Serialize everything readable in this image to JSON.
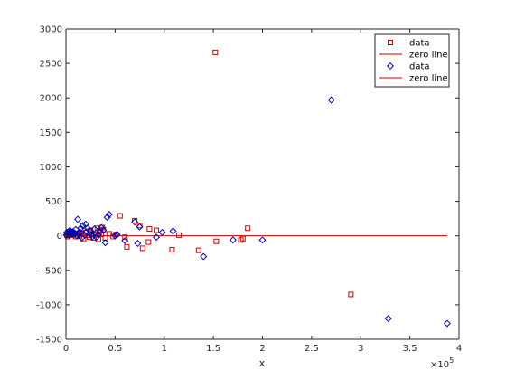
{
  "chart_data": {
    "type": "scatter",
    "xlabel": "x",
    "ylabel": "",
    "title": "",
    "xlim": [
      0,
      400000
    ],
    "ylim": [
      -1500,
      3000
    ],
    "x_exponent_label": "×10",
    "x_exponent_power": "5",
    "x_ticks": [
      0,
      50000,
      100000,
      150000,
      200000,
      250000,
      300000,
      350000,
      400000
    ],
    "x_tick_labels": [
      "0",
      "0.5",
      "1",
      "1.5",
      "2",
      "2.5",
      "3",
      "3.5",
      "4"
    ],
    "y_ticks": [
      -1500,
      -1000,
      -500,
      0,
      500,
      1000,
      1500,
      2000,
      2500,
      3000
    ],
    "y_tick_labels": [
      "-1500",
      "-1000",
      "-500",
      "0",
      "500",
      "1000",
      "1500",
      "2000",
      "2500",
      "3000"
    ],
    "grid": false,
    "legend_position": "top-right",
    "legend": [
      {
        "label": "data",
        "type": "marker",
        "marker": "square",
        "color": "#cc0000"
      },
      {
        "label": "zero line",
        "type": "line",
        "color": "#cc0000"
      },
      {
        "label": "data",
        "type": "marker",
        "marker": "diamond",
        "color": "#0000aa"
      },
      {
        "label": "zero line",
        "type": "line",
        "color": "#cc0000"
      }
    ],
    "series": [
      {
        "name": "data",
        "marker": "square",
        "color": "#cc0000",
        "points": [
          [
            152000,
            2660
          ],
          [
            290000,
            -850
          ],
          [
            185000,
            110
          ],
          [
            180000,
            -40
          ],
          [
            178000,
            -60
          ],
          [
            153000,
            -80
          ],
          [
            135000,
            -210
          ],
          [
            115000,
            10
          ],
          [
            108000,
            -200
          ],
          [
            92000,
            80
          ],
          [
            85000,
            100
          ],
          [
            84000,
            -90
          ],
          [
            78000,
            -180
          ],
          [
            75000,
            150
          ],
          [
            70000,
            220
          ],
          [
            62000,
            -160
          ],
          [
            60000,
            -20
          ],
          [
            55000,
            290
          ],
          [
            51000,
            20
          ],
          [
            48000,
            -10
          ],
          [
            44000,
            30
          ],
          [
            40000,
            -30
          ],
          [
            38000,
            90
          ],
          [
            37000,
            120
          ],
          [
            36000,
            20
          ],
          [
            34000,
            60
          ],
          [
            33000,
            -50
          ],
          [
            32000,
            110
          ],
          [
            30000,
            20
          ],
          [
            28000,
            -30
          ],
          [
            26000,
            40
          ],
          [
            25000,
            80
          ],
          [
            24000,
            -20
          ],
          [
            22000,
            10
          ],
          [
            20000,
            50
          ],
          [
            18000,
            -40
          ],
          [
            16000,
            30
          ],
          [
            14000,
            0
          ],
          [
            12000,
            20
          ],
          [
            10000,
            -10
          ],
          [
            8000,
            40
          ],
          [
            6000,
            10
          ],
          [
            4000,
            20
          ],
          [
            2000,
            -10
          ],
          [
            1000,
            10
          ]
        ]
      },
      {
        "name": "data",
        "marker": "diamond",
        "color": "#0000aa",
        "points": [
          [
            270000,
            1970
          ],
          [
            328000,
            -1200
          ],
          [
            388000,
            -1270
          ],
          [
            200000,
            -60
          ],
          [
            170000,
            -60
          ],
          [
            140000,
            -300
          ],
          [
            109000,
            70
          ],
          [
            98000,
            50
          ],
          [
            92000,
            -20
          ],
          [
            75000,
            130
          ],
          [
            73000,
            -110
          ],
          [
            70000,
            200
          ],
          [
            60000,
            -70
          ],
          [
            52000,
            20
          ],
          [
            50000,
            0
          ],
          [
            44000,
            310
          ],
          [
            42000,
            270
          ],
          [
            40000,
            -100
          ],
          [
            38000,
            80
          ],
          [
            36000,
            120
          ],
          [
            35000,
            60
          ],
          [
            33000,
            20
          ],
          [
            31000,
            -20
          ],
          [
            29000,
            100
          ],
          [
            27000,
            -10
          ],
          [
            26000,
            20
          ],
          [
            25000,
            60
          ],
          [
            22000,
            110
          ],
          [
            21000,
            60
          ],
          [
            20000,
            170
          ],
          [
            19000,
            10
          ],
          [
            17000,
            150
          ],
          [
            16000,
            -30
          ],
          [
            15000,
            110
          ],
          [
            14000,
            60
          ],
          [
            13000,
            30
          ],
          [
            12000,
            240
          ],
          [
            11000,
            0
          ],
          [
            10000,
            90
          ],
          [
            9000,
            40
          ],
          [
            8000,
            20
          ],
          [
            7000,
            60
          ],
          [
            6000,
            30
          ],
          [
            5000,
            50
          ],
          [
            4000,
            80
          ],
          [
            3500,
            10
          ],
          [
            3000,
            40
          ],
          [
            2500,
            60
          ],
          [
            2000,
            20
          ],
          [
            1500,
            30
          ],
          [
            1000,
            50
          ],
          [
            500,
            10
          ]
        ]
      }
    ],
    "zero_line": {
      "x_start": 0,
      "x_end": 388000,
      "y": 0,
      "color": "#cc0000"
    }
  }
}
